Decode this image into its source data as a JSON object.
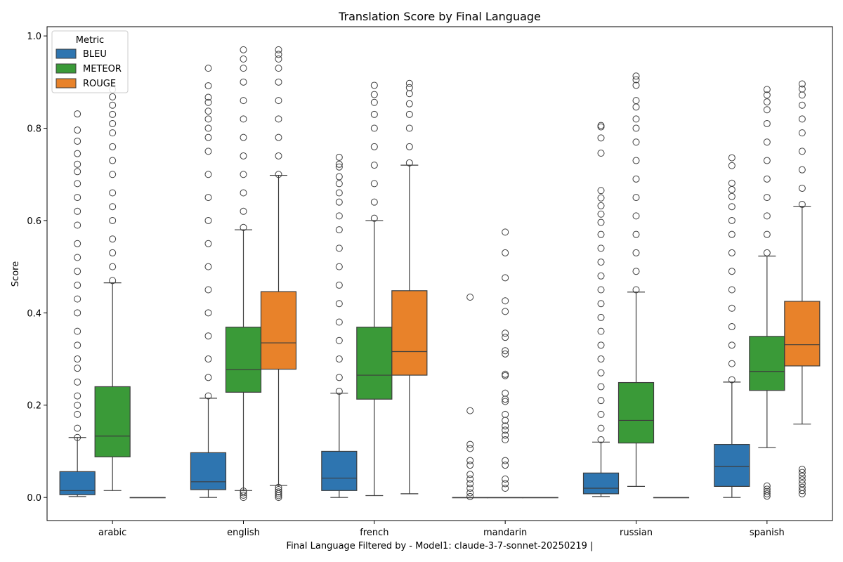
{
  "chart_data": {
    "type": "box",
    "title": "Translation Score by Final Language",
    "xlabel": "Final Language Filtered by - Model1: claude-3-7-sonnet-20250219 |",
    "ylabel": "Score",
    "ylim": [
      -0.05,
      1.02
    ],
    "yticks": [
      "0.0",
      "0.2",
      "0.4",
      "0.6",
      "0.8",
      "1.0"
    ],
    "categories": [
      "arabic",
      "english",
      "french",
      "mandarin",
      "russian",
      "spanish"
    ],
    "legend": {
      "title": "Metric",
      "position": "top-left"
    },
    "series": [
      {
        "name": "BLEU",
        "color": "#2e75b0",
        "boxes": [
          {
            "whisker_low": 0.002,
            "q1": 0.006,
            "median": 0.015,
            "q3": 0.056,
            "whisker_high": 0.13,
            "outliers": [
              0.13,
              0.15,
              0.18,
              0.2,
              0.22,
              0.25,
              0.28,
              0.3,
              0.33,
              0.36,
              0.4,
              0.43,
              0.46,
              0.49,
              0.52,
              0.55,
              0.59,
              0.62,
              0.65,
              0.68,
              0.706,
              0.722,
              0.745,
              0.772,
              0.796,
              0.831
            ]
          },
          {
            "whisker_low": 0.0,
            "q1": 0.017,
            "median": 0.034,
            "q3": 0.097,
            "whisker_high": 0.215,
            "outliers": [
              0.22,
              0.26,
              0.3,
              0.35,
              0.4,
              0.45,
              0.5,
              0.55,
              0.6,
              0.65,
              0.7,
              0.75,
              0.78,
              0.8,
              0.82,
              0.837,
              0.856,
              0.867,
              0.892,
              0.93
            ]
          },
          {
            "whisker_low": 0.0,
            "q1": 0.015,
            "median": 0.042,
            "q3": 0.1,
            "whisker_high": 0.226,
            "outliers": [
              0.23,
              0.26,
              0.3,
              0.34,
              0.38,
              0.42,
              0.46,
              0.5,
              0.54,
              0.58,
              0.61,
              0.64,
              0.66,
              0.68,
              0.695,
              0.716,
              0.722,
              0.737
            ]
          },
          {
            "whisker_low": 0.0,
            "q1": 0.0,
            "median": 0.0,
            "q3": 0.0,
            "whisker_high": 0.0,
            "outliers": [
              0.002,
              0.01,
              0.02,
              0.03,
              0.04,
              0.05,
              0.07,
              0.08,
              0.106,
              0.115,
              0.188,
              0.434
            ]
          },
          {
            "whisker_low": 0.002,
            "q1": 0.008,
            "median": 0.02,
            "q3": 0.053,
            "whisker_high": 0.12,
            "outliers": [
              0.125,
              0.15,
              0.18,
              0.21,
              0.24,
              0.27,
              0.3,
              0.33,
              0.36,
              0.39,
              0.42,
              0.45,
              0.48,
              0.51,
              0.54,
              0.57,
              0.596,
              0.614,
              0.632,
              0.649,
              0.665,
              0.746,
              0.779,
              0.803,
              0.806
            ]
          },
          {
            "whisker_low": 0.0,
            "q1": 0.024,
            "median": 0.067,
            "q3": 0.115,
            "whisker_high": 0.25,
            "outliers": [
              0.255,
              0.29,
              0.33,
              0.37,
              0.41,
              0.45,
              0.49,
              0.53,
              0.57,
              0.6,
              0.63,
              0.652,
              0.667,
              0.681,
              0.719,
              0.736
            ]
          }
        ]
      },
      {
        "name": "METEOR",
        "color": "#3a9a38",
        "boxes": [
          {
            "whisker_low": 0.015,
            "q1": 0.088,
            "median": 0.133,
            "q3": 0.24,
            "whisker_high": 0.465,
            "outliers": [
              0.47,
              0.5,
              0.53,
              0.56,
              0.6,
              0.63,
              0.66,
              0.7,
              0.73,
              0.76,
              0.79,
              0.81,
              0.83,
              0.85,
              0.868,
              0.884
            ]
          },
          {
            "whisker_low": 0.015,
            "q1": 0.228,
            "median": 0.277,
            "q3": 0.369,
            "whisker_high": 0.58,
            "outliers": [
              0.0,
              0.005,
              0.01,
              0.014,
              0.585,
              0.62,
              0.66,
              0.7,
              0.74,
              0.78,
              0.82,
              0.86,
              0.9,
              0.93,
              0.95,
              0.97
            ]
          },
          {
            "whisker_low": 0.004,
            "q1": 0.213,
            "median": 0.265,
            "q3": 0.369,
            "whisker_high": 0.6,
            "outliers": [
              0.605,
              0.64,
              0.68,
              0.72,
              0.76,
              0.8,
              0.83,
              0.856,
              0.873,
              0.893
            ]
          },
          {
            "whisker_low": 0.0,
            "q1": 0.0,
            "median": 0.0,
            "q3": 0.0,
            "whisker_high": 0.0,
            "outliers": [
              0.02,
              0.03,
              0.04,
              0.07,
              0.08,
              0.125,
              0.135,
              0.146,
              0.155,
              0.167,
              0.18,
              0.208,
              0.213,
              0.226,
              0.264,
              0.267,
              0.311,
              0.318,
              0.347,
              0.356,
              0.403,
              0.426,
              0.476,
              0.53,
              0.575
            ]
          },
          {
            "whisker_low": 0.024,
            "q1": 0.118,
            "median": 0.167,
            "q3": 0.249,
            "whisker_high": 0.445,
            "outliers": [
              0.45,
              0.49,
              0.53,
              0.57,
              0.61,
              0.65,
              0.69,
              0.73,
              0.77,
              0.8,
              0.82,
              0.846,
              0.86,
              0.893,
              0.905,
              0.913
            ]
          },
          {
            "whisker_low": 0.108,
            "q1": 0.232,
            "median": 0.273,
            "q3": 0.349,
            "whisker_high": 0.523,
            "outliers": [
              0.003,
              0.008,
              0.013,
              0.018,
              0.025,
              0.53,
              0.57,
              0.61,
              0.65,
              0.69,
              0.73,
              0.77,
              0.81,
              0.84,
              0.857,
              0.872,
              0.884
            ]
          }
        ]
      },
      {
        "name": "ROUGE",
        "color": "#e8822a",
        "boxes": [
          {
            "whisker_low": 0.0,
            "q1": 0.0,
            "median": 0.0,
            "q3": 0.0,
            "whisker_high": 0.0,
            "outliers": []
          },
          {
            "whisker_low": 0.026,
            "q1": 0.278,
            "median": 0.335,
            "q3": 0.446,
            "whisker_high": 0.698,
            "outliers": [
              0.0,
              0.004,
              0.008,
              0.012,
              0.017,
              0.022,
              0.7,
              0.74,
              0.78,
              0.82,
              0.86,
              0.9,
              0.93,
              0.95,
              0.96,
              0.97
            ]
          },
          {
            "whisker_low": 0.008,
            "q1": 0.265,
            "median": 0.316,
            "q3": 0.448,
            "whisker_high": 0.72,
            "outliers": [
              0.725,
              0.76,
              0.8,
              0.83,
              0.853,
              0.875,
              0.888,
              0.897
            ]
          },
          {
            "whisker_low": 0.0,
            "q1": 0.0,
            "median": 0.0,
            "q3": 0.0,
            "whisker_high": 0.0,
            "outliers": []
          },
          {
            "whisker_low": 0.0,
            "q1": 0.0,
            "median": 0.0,
            "q3": 0.0,
            "whisker_high": 0.0,
            "outliers": []
          },
          {
            "whisker_low": 0.159,
            "q1": 0.285,
            "median": 0.331,
            "q3": 0.425,
            "whisker_high": 0.631,
            "outliers": [
              0.008,
              0.015,
              0.022,
              0.03,
              0.038,
              0.046,
              0.054,
              0.061,
              0.635,
              0.67,
              0.71,
              0.75,
              0.79,
              0.82,
              0.85,
              0.872,
              0.885,
              0.896
            ]
          }
        ]
      }
    ]
  }
}
